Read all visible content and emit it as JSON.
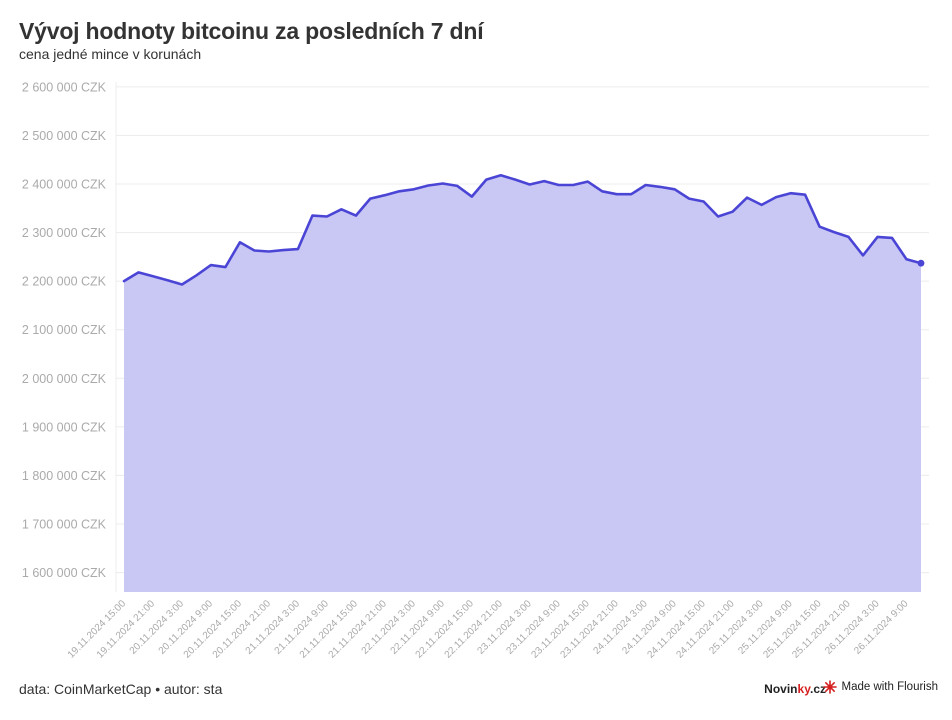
{
  "header": {
    "title": "Vývoj hodnoty bitcoinu za posledních 7 dní",
    "subtitle": "cena jedné mince v korunách"
  },
  "footer": {
    "source_prefix": "data: CoinMarketCap",
    "separator": "•",
    "author": "autor: sta",
    "brand_a": "Novin",
    "brand_b": "ky",
    "brand_c": ".cz",
    "flourish_label": "Made with Flourish"
  },
  "colors": {
    "line": "#4b45d6",
    "area": "#c9c7f4",
    "grid": "#ececec",
    "tick_text": "#aaaaaa",
    "brand_accent": "#d62020"
  },
  "chart_data": {
    "type": "area",
    "title": "Vývoj hodnoty bitcoinu za posledních 7 dní",
    "subtitle": "cena jedné mince v korunách",
    "y_unit": "CZK",
    "ylim": [
      1560000,
      2610000
    ],
    "y_ticks": [
      {
        "value": 2600000,
        "label": "2 600 000 CZK"
      },
      {
        "value": 2500000,
        "label": "2 500 000 CZK"
      },
      {
        "value": 2400000,
        "label": "2 400 000 CZK"
      },
      {
        "value": 2300000,
        "label": "2 300 000 CZK"
      },
      {
        "value": 2200000,
        "label": "2 200 000 CZK"
      },
      {
        "value": 2100000,
        "label": "2 100 000 CZK"
      },
      {
        "value": 2000000,
        "label": "2 000 000 CZK"
      },
      {
        "value": 1900000,
        "label": "1 900 000 CZK"
      },
      {
        "value": 1800000,
        "label": "1 800 000 CZK"
      },
      {
        "value": 1700000,
        "label": "1 700 000 CZK"
      },
      {
        "value": 1600000,
        "label": "1 600 000 CZK"
      }
    ],
    "grid": true,
    "x_ticks": [
      {
        "index": 0,
        "label": "19.11.2024 15:00"
      },
      {
        "index": 2,
        "label": "19.11.2024 21:00"
      },
      {
        "index": 4,
        "label": "20.11.2024 3:00"
      },
      {
        "index": 6,
        "label": "20.11.2024 9:00"
      },
      {
        "index": 8,
        "label": "20.11.2024 15:00"
      },
      {
        "index": 10,
        "label": "20.11.2024 21:00"
      },
      {
        "index": 12,
        "label": "21.11.2024 3:00"
      },
      {
        "index": 14,
        "label": "21.11.2024 9:00"
      },
      {
        "index": 16,
        "label": "21.11.2024 15:00"
      },
      {
        "index": 18,
        "label": "21.11.2024 21:00"
      },
      {
        "index": 20,
        "label": "22.11.2024 3:00"
      },
      {
        "index": 22,
        "label": "22.11.2024 9:00"
      },
      {
        "index": 24,
        "label": "22.11.2024 15:00"
      },
      {
        "index": 26,
        "label": "22.11.2024 21:00"
      },
      {
        "index": 28,
        "label": "23.11.2024 3:00"
      },
      {
        "index": 30,
        "label": "23.11.2024 9:00"
      },
      {
        "index": 32,
        "label": "23.11.2024 15:00"
      },
      {
        "index": 34,
        "label": "23.11.2024 21:00"
      },
      {
        "index": 36,
        "label": "24.11.2024 3:00"
      },
      {
        "index": 38,
        "label": "24.11.2024 9:00"
      },
      {
        "index": 40,
        "label": "24.11.2024 15:00"
      },
      {
        "index": 42,
        "label": "24.11.2024 21:00"
      },
      {
        "index": 44,
        "label": "25.11.2024 3:00"
      },
      {
        "index": 46,
        "label": "25.11.2024 9:00"
      },
      {
        "index": 48,
        "label": "25.11.2024 15:00"
      },
      {
        "index": 50,
        "label": "25.11.2024 21:00"
      },
      {
        "index": 52,
        "label": "26.11.2024 3:00"
      },
      {
        "index": 54,
        "label": "26.11.2024 9:00"
      }
    ],
    "values": [
      2200000,
      2218000,
      2210000,
      2202000,
      2193000,
      2212000,
      2233000,
      2229000,
      2280000,
      2263000,
      2261000,
      2264000,
      2266000,
      2335000,
      2333000,
      2348000,
      2335000,
      2370000,
      2377000,
      2385000,
      2389000,
      2397000,
      2401000,
      2396000,
      2374000,
      2409000,
      2418000,
      2409000,
      2399000,
      2406000,
      2398000,
      2398000,
      2405000,
      2385000,
      2379000,
      2379000,
      2398000,
      2394000,
      2389000,
      2370000,
      2364000,
      2333000,
      2343000,
      2372000,
      2357000,
      2373000,
      2381000,
      2378000,
      2312000,
      2301000,
      2291000,
      2253000,
      2291000,
      2289000,
      2245000,
      2237000
    ]
  }
}
